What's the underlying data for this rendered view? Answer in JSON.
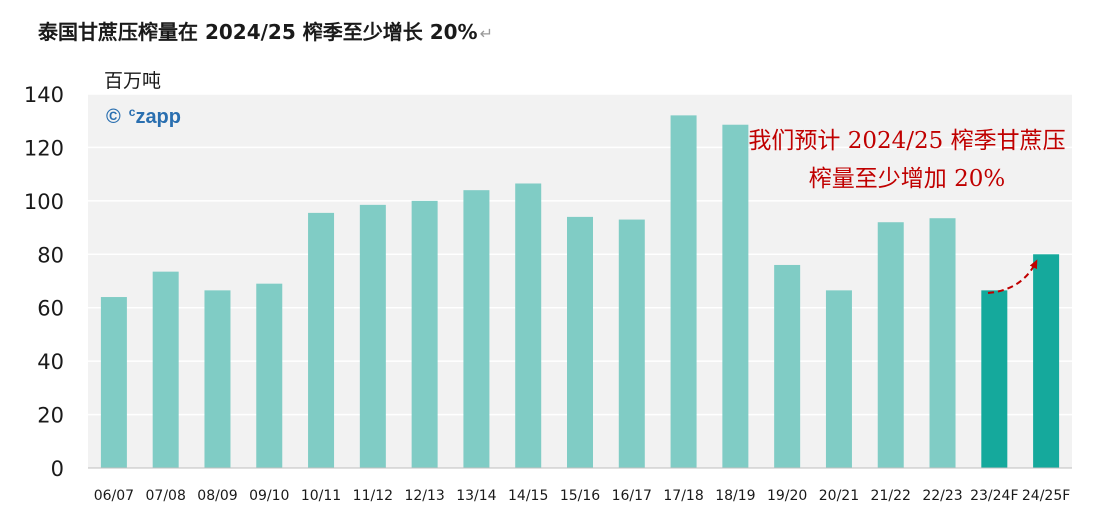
{
  "title": "泰国甘蔗压榨量在 2024/25 榨季至少增长 20%",
  "title_mark": "↵",
  "unit_label": "百万吨",
  "logo": {
    "symbol": "©",
    "superscript": "c",
    "name": "zapp"
  },
  "annotation": "我们预计 2024/25 榨季甘蔗压榨量至少增加 20%",
  "colors": {
    "bar": "#80ccc5",
    "bar_highlight": "#15a99c",
    "annotation": "#c00000",
    "plot_bg": "#f2f2f2"
  },
  "chart_data": {
    "type": "bar",
    "categories": [
      "06/07",
      "07/08",
      "08/09",
      "09/10",
      "10/11",
      "11/12",
      "12/13",
      "13/14",
      "14/15",
      "15/16",
      "16/17",
      "17/18",
      "18/19",
      "19/20",
      "20/21",
      "21/22",
      "22/23",
      "23/24F",
      "24/25F"
    ],
    "values": [
      64,
      73.5,
      66.5,
      69,
      95.5,
      98.5,
      100,
      104,
      106.5,
      94,
      93,
      132,
      128.5,
      76,
      66.5,
      92,
      93.5,
      66.5,
      80
    ],
    "highlight": [
      "23/24F",
      "24/25F"
    ],
    "ylim": [
      0,
      140
    ],
    "yticks": [
      0,
      20,
      40,
      60,
      80,
      100,
      120,
      140
    ],
    "grid": true,
    "xlabel": "",
    "ylabel": "百万吨"
  }
}
